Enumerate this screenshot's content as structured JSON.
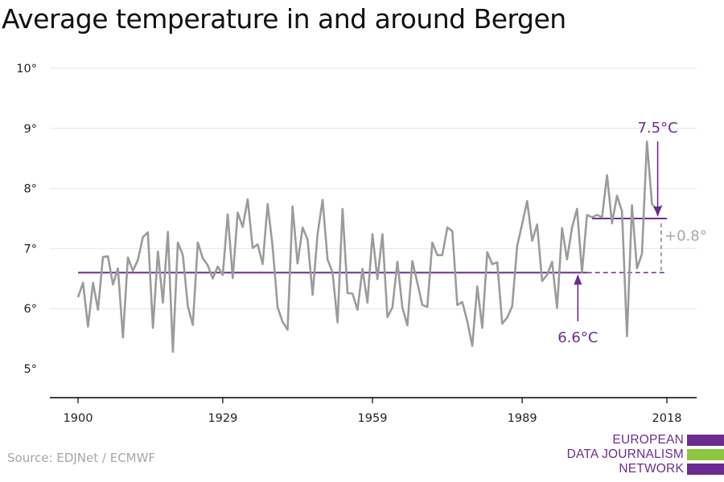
{
  "title": "Average temperature in and around Bergen",
  "source": "Source: EDJNet / ECMWF",
  "logo": {
    "line1": "EUROPEAN",
    "line2": "DATA JOURNALISM",
    "line3": "NETWORK",
    "colors": {
      "purple": "#6b2c91",
      "green": "#8dc63f"
    }
  },
  "colors": {
    "line": "#9b9b9b",
    "accent": "#6b2c91",
    "diff": "#a6a6a6",
    "axis": "#000000",
    "grid": "#e6e6e6"
  },
  "chart_data": {
    "type": "line",
    "title": "Average temperature in and around Bergen",
    "xlabel": "",
    "ylabel": "",
    "xlim": [
      1900,
      2018
    ],
    "ylim": [
      5,
      10
    ],
    "x_ticks": [
      1900,
      1929,
      1959,
      1989,
      2018
    ],
    "y_ticks": [
      5,
      6,
      7,
      8,
      9,
      10
    ],
    "y_tick_labels": [
      "5°",
      "6°",
      "7°",
      "8°",
      "9°",
      "10°"
    ],
    "x_tick_labels": [
      "1900",
      "1929",
      "1959",
      "1989",
      "2018"
    ],
    "grid": true,
    "series": [
      {
        "x_start": 1900,
        "values": [
          6.19,
          6.43,
          5.7,
          6.43,
          5.98,
          6.86,
          6.87,
          6.4,
          6.67,
          5.52,
          6.85,
          6.63,
          6.81,
          7.19,
          7.27,
          5.68,
          6.95,
          6.1,
          7.28,
          5.28,
          7.1,
          6.89,
          6.04,
          5.73,
          7.1,
          6.84,
          6.72,
          6.5,
          6.7,
          6.56,
          7.57,
          6.51,
          7.6,
          7.36,
          7.82,
          7.01,
          7.07,
          6.74,
          7.74,
          7.03,
          6.02,
          5.78,
          5.65,
          7.7,
          6.75,
          7.35,
          7.15,
          6.23,
          7.24,
          7.81,
          6.82,
          6.6,
          5.77,
          7.66,
          6.26,
          6.25,
          5.98,
          6.66,
          6.1,
          7.24,
          6.49,
          7.24,
          5.86,
          6.02,
          6.78,
          6.02,
          5.72,
          6.79,
          6.43,
          6.06,
          6.03,
          7.1,
          6.89,
          6.89,
          7.35,
          7.29,
          6.06,
          6.11,
          5.79,
          5.38,
          6.37,
          5.68,
          6.94,
          6.74,
          6.77,
          5.75,
          5.85,
          6.04,
          7.04,
          7.41,
          7.79,
          7.13,
          7.4,
          6.46,
          6.56,
          6.78,
          6.01,
          7.34,
          6.82,
          7.35,
          7.66,
          6.61,
          7.56,
          7.52,
          7.56,
          7.52,
          8.22,
          7.42,
          7.88,
          7.62,
          5.54,
          7.72,
          6.67,
          6.91,
          8.78,
          7.75,
          7.62,
          7.72
        ]
      }
    ],
    "annotations": {
      "baseline": {
        "value": 6.6,
        "from": 1900,
        "to": 2002,
        "dashed_to": 2018,
        "label": "6.6°C"
      },
      "recent": {
        "value": 7.5,
        "from": 2003,
        "to": 2018,
        "label": "7.5°C"
      },
      "difference": {
        "label": "+0.8°"
      }
    }
  }
}
